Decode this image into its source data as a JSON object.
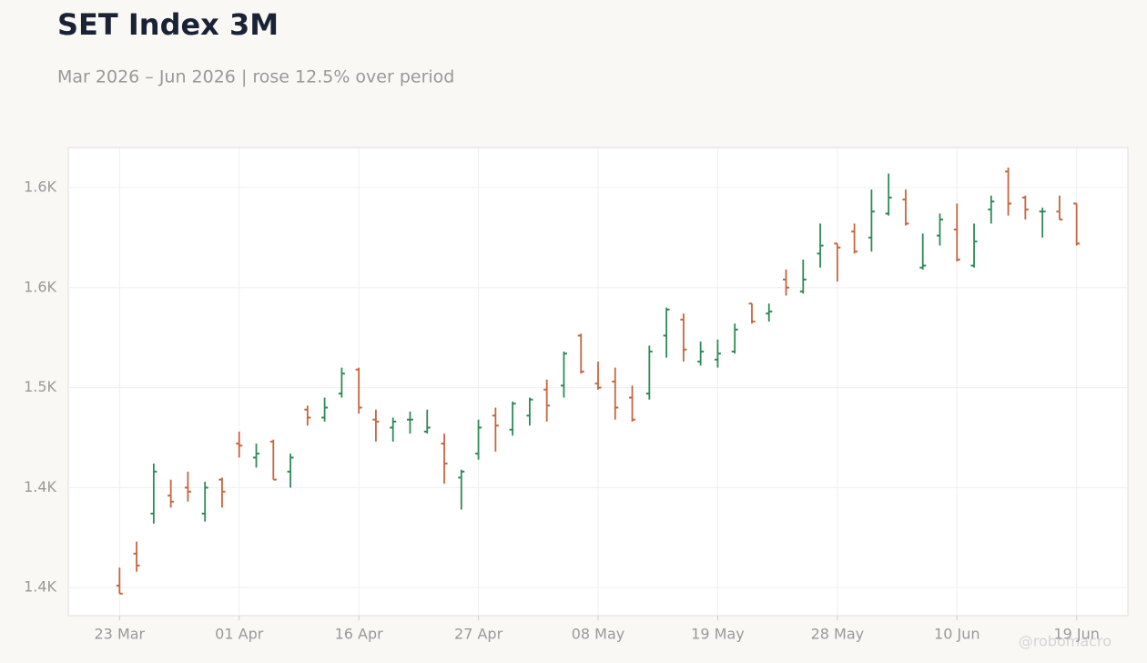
{
  "chart_data": {
    "type": "ohlc",
    "title": "SET Index 3M",
    "subtitle": "Mar 2026 – Jun 2026 | rose 12.5% over period",
    "watermark": "@robomacro",
    "up_color": "#2e8a57",
    "down_color": "#c6653f",
    "grid": true,
    "categories": [
      "23 Mar",
      null,
      null,
      null,
      null,
      null,
      null,
      "01 Apr",
      null,
      null,
      null,
      null,
      null,
      null,
      "16 Apr",
      null,
      null,
      null,
      null,
      null,
      null,
      "27 Apr",
      null,
      null,
      null,
      null,
      null,
      null,
      "08 May",
      null,
      null,
      null,
      null,
      null,
      null,
      "19 May",
      null,
      null,
      null,
      null,
      null,
      null,
      "28 May",
      null,
      null,
      null,
      null,
      null,
      null,
      "10 Jun",
      null,
      null,
      null,
      null,
      null,
      null,
      "19 Jun"
    ],
    "open": [
      1401,
      1417,
      1437,
      1446,
      1450,
      1437,
      1454,
      1472,
      1465,
      1473,
      1458,
      1489,
      1485,
      1497,
      1509,
      1484,
      1480,
      1484,
      1478,
      1472,
      1455,
      1467,
      1486,
      1479,
      1486,
      1499,
      1501,
      1526,
      1502,
      1503,
      1495,
      1497,
      1526,
      1534,
      1513,
      1514,
      1518,
      1542,
      1537,
      1554,
      1548,
      1567,
      1572,
      1578,
      1575,
      1587,
      1594,
      1560,
      1576,
      1579,
      1561,
      1589,
      1608,
      1595,
      1588,
      1588,
      1592
    ],
    "high": [
      1410,
      1423,
      1462,
      1454,
      1458,
      1453,
      1455,
      1478,
      1472,
      1474,
      1467,
      1491,
      1495,
      1510,
      1510,
      1489,
      1485,
      1488,
      1489,
      1477,
      1459,
      1484,
      1490,
      1493,
      1495,
      1504,
      1518,
      1527,
      1513,
      1510,
      1501,
      1521,
      1540,
      1537,
      1523,
      1524,
      1532,
      1542,
      1542,
      1559,
      1564,
      1582,
      1572,
      1582,
      1599,
      1607,
      1599,
      1577,
      1587,
      1592,
      1582,
      1596,
      1610,
      1596,
      1590,
      1596,
      1592
    ],
    "low": [
      1397,
      1408,
      1432,
      1440,
      1443,
      1433,
      1440,
      1465,
      1460,
      1454,
      1450,
      1481,
      1483,
      1495,
      1487,
      1473,
      1473,
      1477,
      1477,
      1452,
      1439,
      1464,
      1468,
      1476,
      1481,
      1483,
      1495,
      1507,
      1499,
      1484,
      1483,
      1494,
      1515,
      1513,
      1511,
      1510,
      1517,
      1532,
      1533,
      1546,
      1547,
      1560,
      1553,
      1567,
      1568,
      1586,
      1581,
      1559,
      1571,
      1563,
      1560,
      1582,
      1586,
      1584,
      1575,
      1584,
      1571
    ],
    "close": [
      1397,
      1411,
      1458,
      1443,
      1448,
      1450,
      1448,
      1471,
      1467,
      1454,
      1465,
      1485,
      1490,
      1507,
      1490,
      1483,
      1483,
      1484,
      1480,
      1462,
      1458,
      1480,
      1481,
      1492,
      1494,
      1491,
      1517,
      1508,
      1500,
      1490,
      1484,
      1518,
      1539,
      1519,
      1518,
      1517,
      1529,
      1533,
      1538,
      1550,
      1554,
      1571,
      1570,
      1568,
      1588,
      1595,
      1582,
      1561,
      1584,
      1564,
      1573,
      1593,
      1592,
      1589,
      1588,
      1584,
      1572
    ],
    "ylim": [
      1386,
      1620
    ],
    "yticks": [
      {
        "value": 1400,
        "label": "1.4K"
      },
      {
        "value": 1450,
        "label": "1.4K"
      },
      {
        "value": 1500,
        "label": "1.5K"
      },
      {
        "value": 1550,
        "label": "1.6K"
      },
      {
        "value": 1600,
        "label": "1.6K"
      }
    ]
  }
}
